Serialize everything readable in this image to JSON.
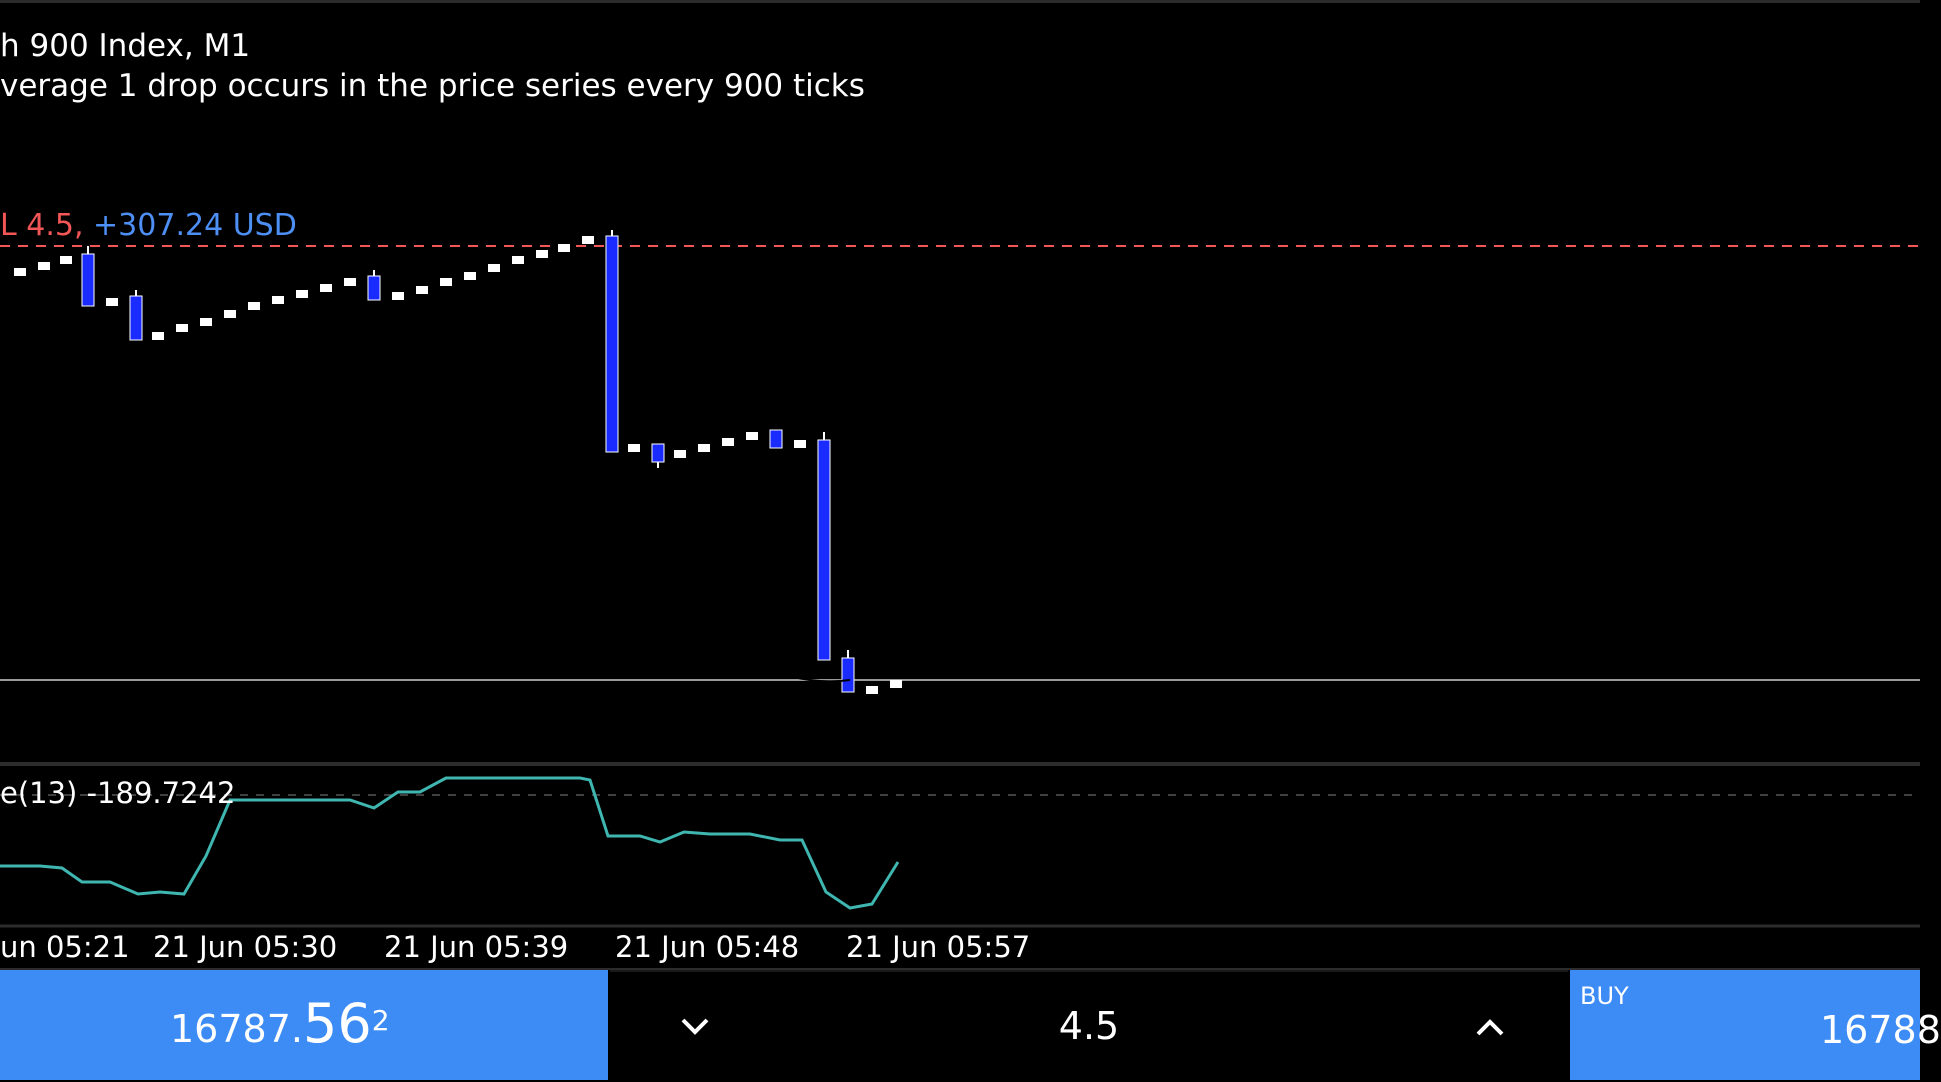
{
  "chart": {
    "title": "h 900 Index, M1",
    "description": "verage 1 drop occurs in the price series every 900 ticks",
    "order_lot": "L 4.5,",
    "order_profit": "+307.24 USD",
    "oscillator_label": "e(13) -189.7242",
    "time_labels": [
      "un 05:21",
      "21 Jun 05:30",
      "21 Jun 05:39",
      "21 Jun 05:48",
      "21 Jun 05:57"
    ],
    "colors": {
      "background": "#000000",
      "candle_bear": "#1a2bff",
      "candle_bull": "#ffffff",
      "order_line": "#f25656",
      "profit_text": "#4d8ff5",
      "oscillator_line": "#3fb6b0",
      "panel_blue": "#3d8cf5"
    }
  },
  "trade_bar": {
    "sell_price_small": "16787.",
    "sell_price_big": "56",
    "sell_price_sup": "2",
    "lot_value": "4.5",
    "down_icon": "chevron-down-icon",
    "up_icon": "chevron-up-icon",
    "buy_label": "BUY",
    "buy_price": "16788"
  }
}
